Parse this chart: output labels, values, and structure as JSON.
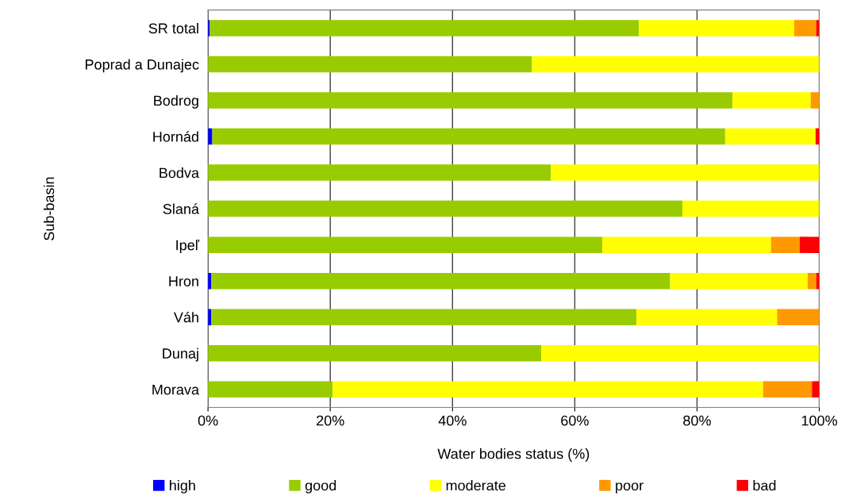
{
  "chart_data": {
    "type": "bar",
    "orientation": "horizontal",
    "stacked": true,
    "xlabel": "Water bodies status (%)",
    "ylabel": "Sub-basin",
    "categories": [
      "SR total",
      "Poprad a Dunajec",
      "Bodrog",
      "Hornád",
      "Bodva",
      "Slaná",
      "Ipeľ",
      "Hron",
      "Váh",
      "Dunaj",
      "Morava"
    ],
    "series": [
      {
        "name": "high",
        "color": "#0000ff",
        "values": [
          0.3,
          0,
          0,
          0.7,
          0,
          0,
          0,
          0.5,
          0.5,
          0,
          0
        ]
      },
      {
        "name": "good",
        "color": "#99cc00",
        "values": [
          70.2,
          53.0,
          85.8,
          83.9,
          56.1,
          77.6,
          64.5,
          75.1,
          69.6,
          54.5,
          20.4
        ]
      },
      {
        "name": "moderate",
        "color": "#ffff00",
        "values": [
          25.4,
          47.0,
          12.8,
          14.8,
          43.9,
          22.4,
          27.6,
          22.5,
          23.0,
          45.5,
          70.4
        ]
      },
      {
        "name": "poor",
        "color": "#ff9900",
        "values": [
          3.6,
          0,
          1.4,
          0,
          0,
          0,
          4.7,
          1.4,
          6.9,
          0,
          8.0
        ]
      },
      {
        "name": "bad",
        "color": "#ff0000",
        "values": [
          0.5,
          0,
          0,
          0.6,
          0,
          0,
          3.2,
          0.5,
          0,
          0,
          1.2
        ]
      }
    ],
    "xlim": [
      0,
      100
    ],
    "xticks": [
      {
        "value": 0,
        "label": "0%"
      },
      {
        "value": 20,
        "label": "20%"
      },
      {
        "value": 40,
        "label": "40%"
      },
      {
        "value": 60,
        "label": "60%"
      },
      {
        "value": 80,
        "label": "80%"
      },
      {
        "value": 100,
        "label": "100%"
      }
    ],
    "grid": "x",
    "legend": "bottom"
  }
}
